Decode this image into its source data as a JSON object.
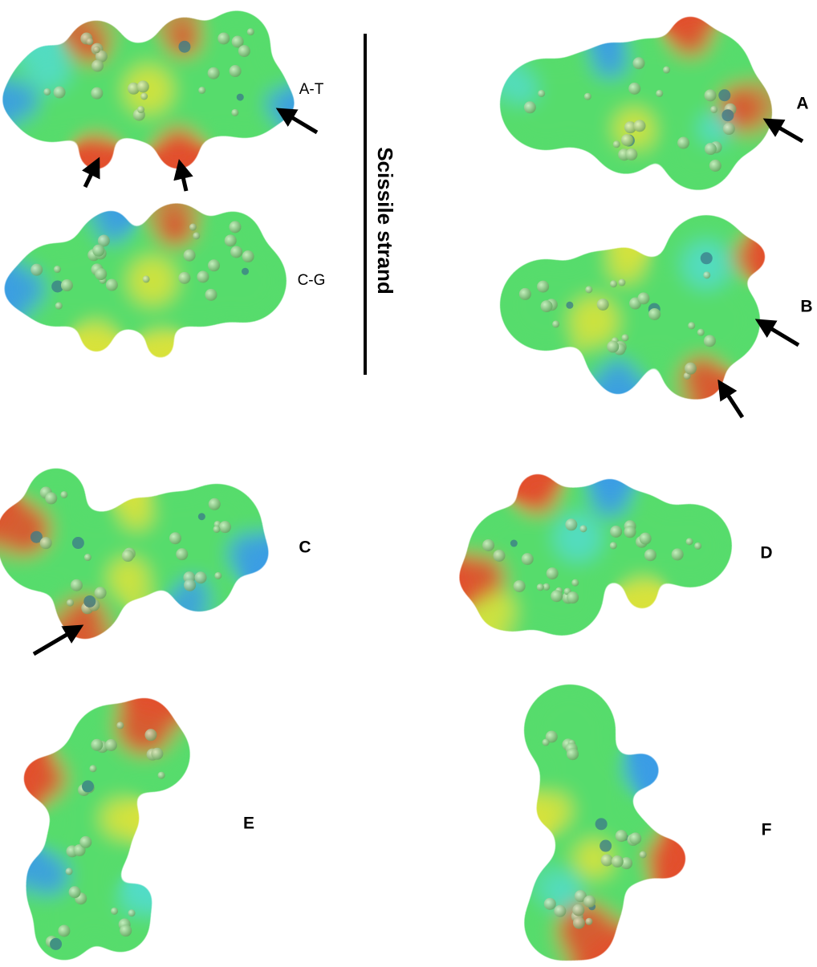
{
  "base_pairs": [
    "A-T",
    "C-G"
  ],
  "strand_label": "Scissile strand",
  "panels": [
    "A",
    "B",
    "C",
    "D",
    "E",
    "F"
  ]
}
